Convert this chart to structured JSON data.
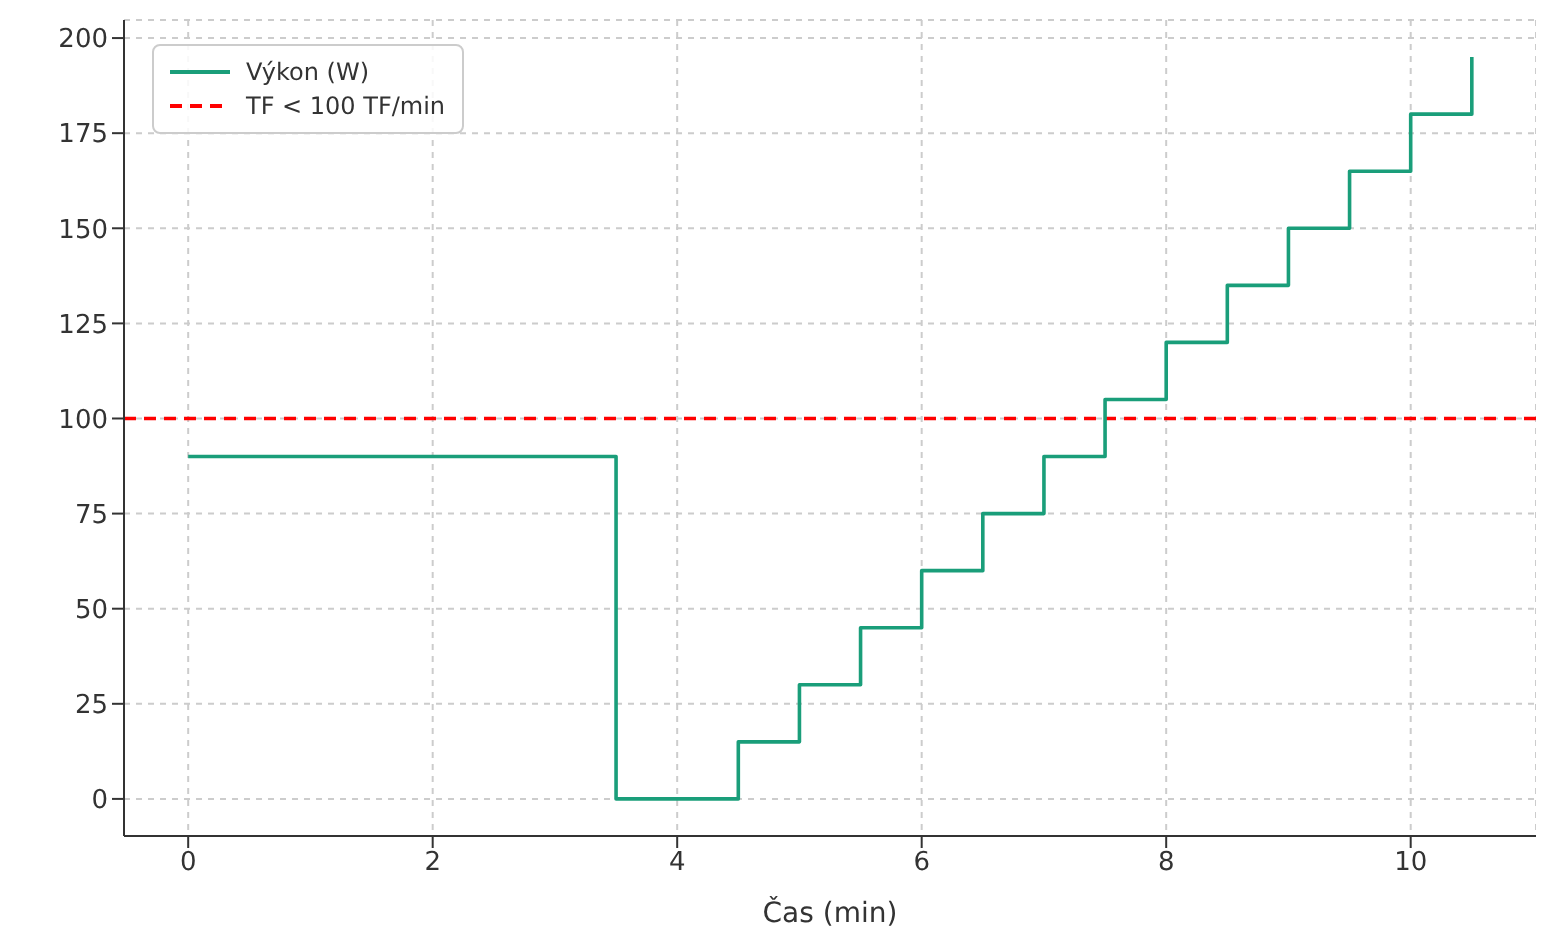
{
  "chart_data": {
    "type": "step",
    "xlabel": "Čas (min)",
    "x": [
      0,
      3.5,
      4.5,
      5,
      5.5,
      6,
      6.5,
      7,
      7.5,
      8,
      8.5,
      9,
      9.5,
      10,
      10.5
    ],
    "series": [
      {
        "name": "Výkon (W)",
        "color": "#1a9e7a",
        "values": [
          90,
          0,
          15,
          30,
          45,
          60,
          75,
          90,
          105,
          120,
          135,
          150,
          165,
          180,
          195
        ]
      }
    ],
    "xlim": [
      -0.525,
      11.025
    ],
    "xticks": [
      0,
      2,
      4,
      6,
      8,
      10
    ],
    "ylim": [
      -9.75,
      204.75
    ],
    "yticks": [
      0,
      25,
      50,
      75,
      100,
      125,
      150,
      175,
      200
    ],
    "ref_lines": [
      {
        "axis": "y",
        "value": 100,
        "label": "TF < 100 TF/min",
        "color": "#ff0000",
        "line_style": "dashed"
      }
    ],
    "grid": true,
    "legend": "top left",
    "line_style": "solid",
    "marker": "none"
  }
}
